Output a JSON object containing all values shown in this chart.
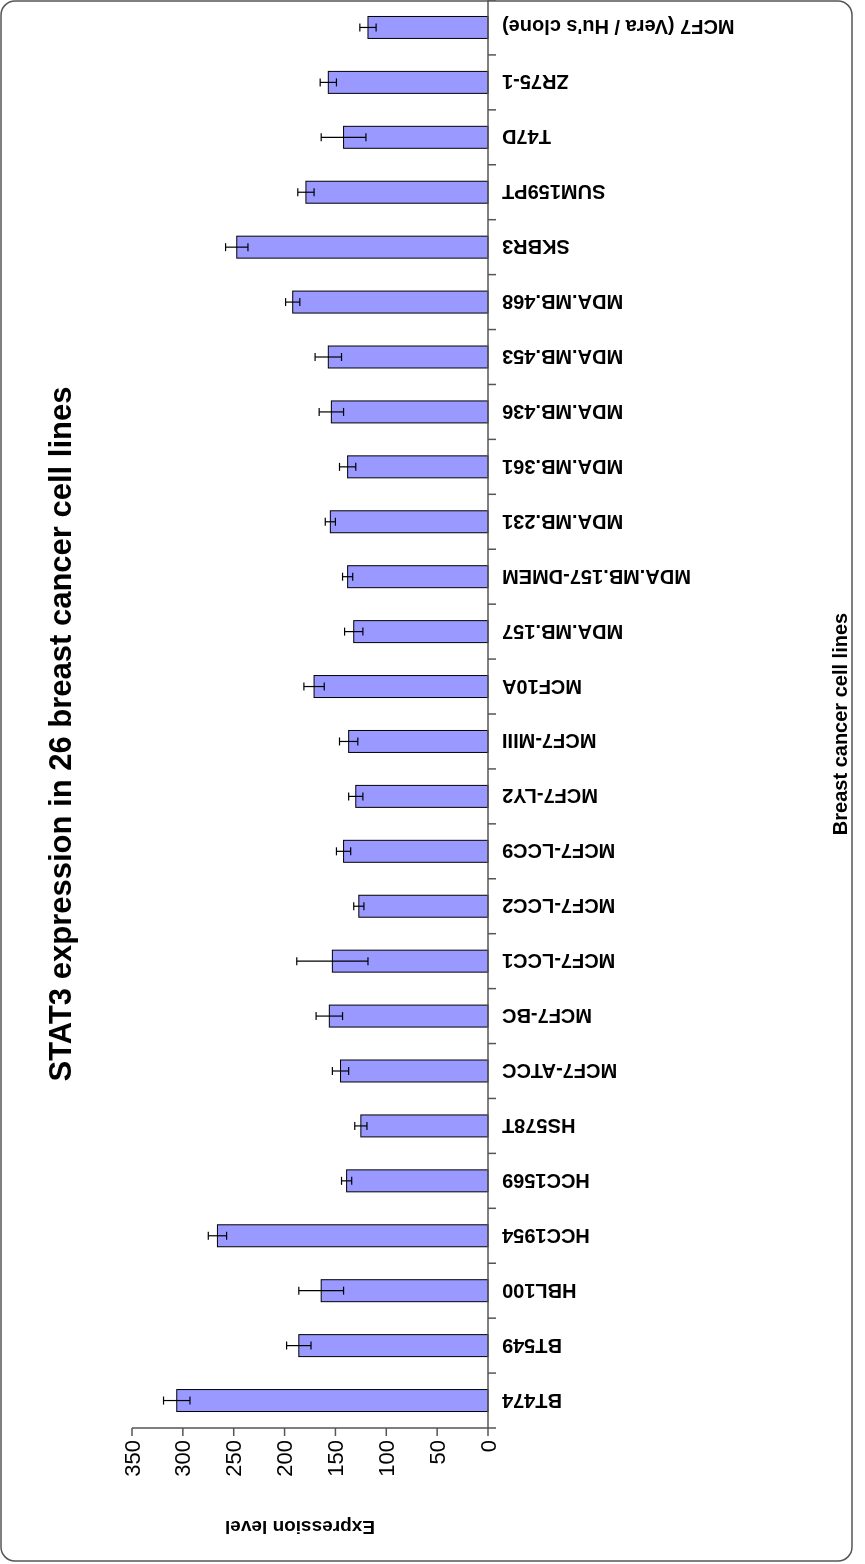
{
  "chart_data": {
    "type": "bar",
    "orientation": "horizontal",
    "title": "STAT3 expression in 26 breast cancer cell lines",
    "xlabel": "Expression level",
    "ylabel": "Breast cancer cell lines",
    "categories": [
      "MCF7 (Vera / Hu's clone)",
      "ZR75-1",
      "T47D",
      "SUM159PT",
      "SKBR3",
      "MDA.MB.468",
      "MDA.MB.453",
      "MDA.MB.436",
      "MDA.MB.361",
      "MDA.MB.231",
      "MDA.MB.157-DMEM",
      "MDA.MB.157",
      "MCF10A",
      "MCF7-MIII",
      "MCF7-LY2",
      "MCF7-LCC9",
      "MCF7-LCC2",
      "MCF7-LCC1",
      "MCF7-BC",
      "MCF7-ATCC",
      "HS578T",
      "HCC1569",
      "HCC1954",
      "HBL100",
      "BT549",
      "BT474"
    ],
    "values": [
      118,
      157,
      142,
      179,
      247,
      192,
      157,
      154,
      138,
      155,
      138,
      132,
      171,
      137,
      130,
      142,
      127,
      153,
      156,
      145,
      125,
      139,
      266,
      164,
      186,
      306
    ],
    "errors": [
      8,
      8,
      22,
      8,
      11,
      7,
      13,
      12,
      8,
      5,
      5,
      9,
      10,
      9,
      7,
      7,
      5,
      35,
      13,
      8,
      6,
      5,
      9,
      22,
      12,
      13
    ],
    "color": "#9999ff",
    "xlim": [
      350,
      0
    ],
    "xticks": [
      0,
      50,
      100,
      150,
      200,
      250,
      300,
      350
    ],
    "grid": false
  }
}
